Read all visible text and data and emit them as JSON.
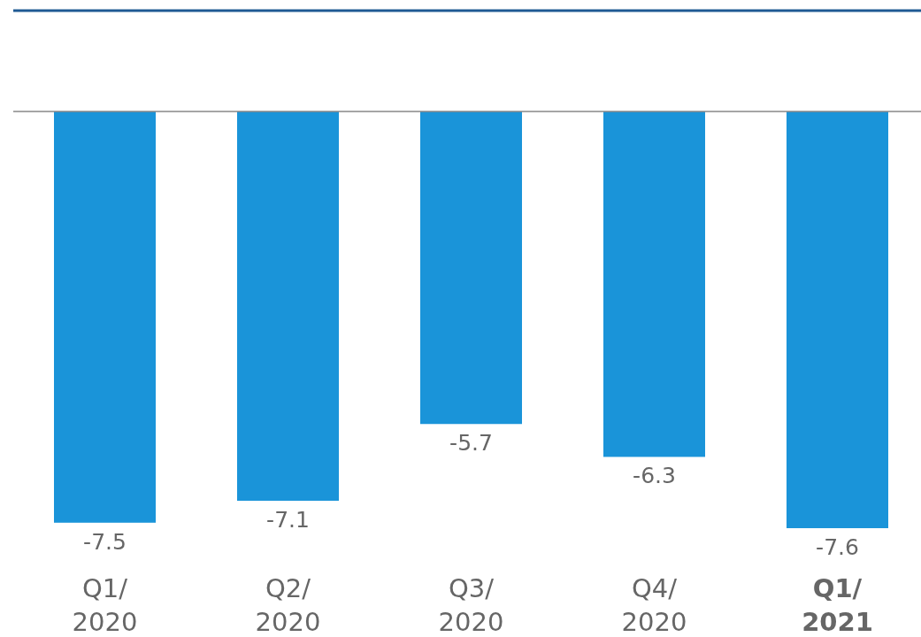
{
  "chart_data": {
    "type": "bar",
    "categories": [
      "Q1/ 2020",
      "Q2/ 2020",
      "Q3/ 2020",
      "Q4/ 2020",
      "Q1/ 2021"
    ],
    "values": [
      -7.5,
      -7.1,
      -5.7,
      -6.3,
      -7.6
    ],
    "color": "#1a94d9",
    "data_labels": true
  }
}
